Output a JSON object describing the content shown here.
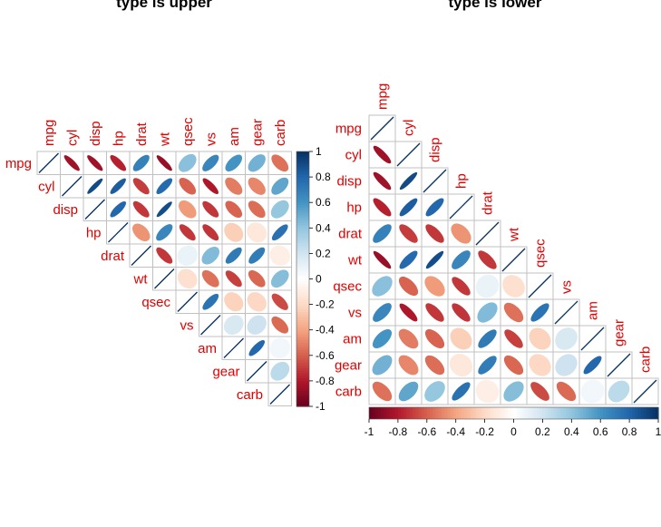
{
  "chart_data": [
    {
      "type": "heatmap",
      "title": "type is upper",
      "variables": [
        "mpg",
        "cyl",
        "disp",
        "hp",
        "drat",
        "wt",
        "qsec",
        "vs",
        "am",
        "gear",
        "carb"
      ],
      "triangle": "upper",
      "shape": "ellipse",
      "legend": "right",
      "colorbar_ticks": [
        "1",
        "0.8",
        "0.6",
        "0.4",
        "0.2",
        "0",
        "-0.2",
        "-0.4",
        "-0.6",
        "-0.8",
        "-1"
      ]
    },
    {
      "type": "heatmap",
      "title": "type is lower",
      "variables": [
        "mpg",
        "cyl",
        "disp",
        "hp",
        "drat",
        "wt",
        "qsec",
        "vs",
        "am",
        "gear",
        "carb"
      ],
      "triangle": "lower",
      "shape": "ellipse",
      "legend": "bottom",
      "colorbar_ticks": [
        "-1",
        "-0.8",
        "-0.6",
        "-0.4",
        "-0.2",
        "0",
        "0.2",
        "0.4",
        "0.6",
        "0.8",
        "1"
      ]
    }
  ],
  "correlation_matrix": [
    [
      1,
      -0.85,
      -0.85,
      -0.78,
      0.68,
      -0.87,
      0.42,
      0.66,
      0.6,
      0.48,
      -0.55
    ],
    [
      -0.85,
      1,
      0.9,
      0.83,
      -0.7,
      0.78,
      -0.59,
      -0.81,
      -0.52,
      -0.49,
      0.53
    ],
    [
      -0.85,
      0.9,
      1,
      0.79,
      -0.71,
      0.89,
      -0.43,
      -0.71,
      -0.59,
      -0.56,
      0.39
    ],
    [
      -0.78,
      0.83,
      0.79,
      1,
      -0.45,
      0.66,
      -0.71,
      -0.72,
      -0.24,
      -0.13,
      0.75
    ],
    [
      0.68,
      -0.7,
      -0.71,
      -0.45,
      1,
      -0.71,
      0.09,
      0.44,
      0.71,
      0.7,
      -0.09
    ],
    [
      -0.87,
      0.78,
      0.89,
      0.66,
      -0.71,
      1,
      -0.17,
      -0.55,
      -0.69,
      -0.58,
      0.43
    ],
    [
      0.42,
      -0.59,
      -0.43,
      -0.71,
      0.09,
      -0.17,
      1,
      0.74,
      -0.23,
      -0.21,
      -0.66
    ],
    [
      0.66,
      -0.81,
      -0.71,
      -0.72,
      0.44,
      -0.55,
      0.74,
      1,
      0.17,
      0.21,
      -0.57
    ],
    [
      0.6,
      -0.52,
      -0.59,
      -0.24,
      0.71,
      -0.69,
      -0.23,
      0.17,
      1,
      0.79,
      0.06
    ],
    [
      0.48,
      -0.49,
      -0.56,
      -0.13,
      0.7,
      -0.58,
      -0.21,
      0.21,
      0.79,
      1,
      0.27
    ],
    [
      -0.55,
      0.53,
      0.39,
      0.75,
      -0.09,
      0.43,
      -0.66,
      -0.57,
      0.06,
      0.27,
      1
    ]
  ],
  "colors": {
    "label": "#e00000",
    "scale": [
      "#67001F",
      "#B2182B",
      "#D6604D",
      "#F4A582",
      "#FDDBC7",
      "#FFFFFF",
      "#D1E5F0",
      "#92C5DE",
      "#4393C3",
      "#2166AC",
      "#053061"
    ]
  }
}
